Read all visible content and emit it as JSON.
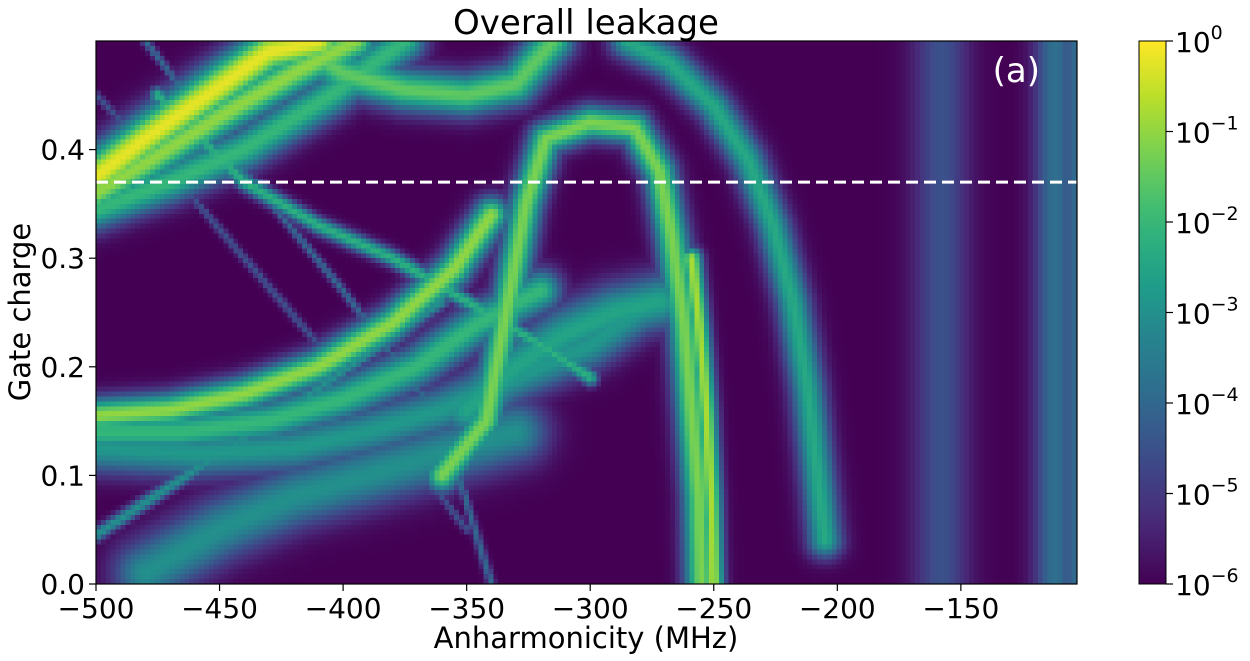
{
  "chart_data": {
    "type": "heatmap",
    "title": "Overall leakage",
    "xlabel": "Anharmonicity (MHz)",
    "ylabel": "Gate charge",
    "xlim": [
      -500,
      -103
    ],
    "ylim": [
      0.0,
      0.5
    ],
    "x_ticks": [
      {
        "value": -500,
        "label": "−500"
      },
      {
        "value": -450,
        "label": "−450"
      },
      {
        "value": -400,
        "label": "−400"
      },
      {
        "value": -350,
        "label": "−350"
      },
      {
        "value": -300,
        "label": "−300"
      },
      {
        "value": -250,
        "label": "−250"
      },
      {
        "value": -200,
        "label": "−200"
      },
      {
        "value": -150,
        "label": "−150"
      }
    ],
    "y_ticks": [
      {
        "value": 0.0,
        "label": "0.0"
      },
      {
        "value": 0.1,
        "label": "0.1"
      },
      {
        "value": 0.2,
        "label": "0.2"
      },
      {
        "value": 0.3,
        "label": "0.3"
      },
      {
        "value": 0.4,
        "label": "0.4"
      }
    ],
    "colormap": "viridis",
    "color_scale": "log",
    "color_range": [
      1e-06,
      1
    ],
    "colorbar_ticks": [
      {
        "exp": 0,
        "base": "10",
        "sup": "0"
      },
      {
        "exp": -1,
        "base": "10",
        "sup": "−1"
      },
      {
        "exp": -2,
        "base": "10",
        "sup": "−2"
      },
      {
        "exp": -3,
        "base": "10",
        "sup": "−3"
      },
      {
        "exp": -4,
        "base": "10",
        "sup": "−4"
      },
      {
        "exp": -5,
        "base": "10",
        "sup": "−5"
      },
      {
        "exp": -6,
        "base": "10",
        "sup": "−6"
      }
    ],
    "reference_line": {
      "orientation": "horizontal",
      "y": 0.37,
      "style": "dashed",
      "color": "#ffffff"
    },
    "annotation": {
      "text": "(a)",
      "position": "top-right",
      "color": "#ffffff"
    },
    "background_value_log10": -6,
    "features": [
      {
        "name": "resonance-main-left",
        "points": [
          [
            -255,
            0
          ],
          [
            -256,
            0.08
          ],
          [
            -259,
            0.16
          ],
          [
            -262,
            0.24
          ],
          [
            -267,
            0.32
          ],
          [
            -272,
            0.38
          ],
          [
            -282,
            0.42
          ],
          [
            -300,
            0.425
          ],
          [
            -318,
            0.41
          ],
          [
            -326,
            0.35
          ],
          [
            -334,
            0.25
          ],
          [
            -342,
            0.15
          ],
          [
            -360,
            0.1
          ]
        ],
        "log10": -1.2,
        "width": 2.4
      },
      {
        "name": "resonance-main-right",
        "points": [
          [
            -205,
            0.04
          ],
          [
            -208,
            0.1
          ],
          [
            -212,
            0.18
          ],
          [
            -218,
            0.26
          ],
          [
            -226,
            0.33
          ],
          [
            -236,
            0.39
          ],
          [
            -250,
            0.44
          ],
          [
            -268,
            0.48
          ],
          [
            -285,
            0.5
          ]
        ],
        "log10": -2.4,
        "width": 2.5
      },
      {
        "name": "resonance-sharp-left",
        "points": [
          [
            -250,
            0
          ],
          [
            -251,
            0.08
          ],
          [
            -253,
            0.16
          ],
          [
            -256,
            0.24
          ],
          [
            -259,
            0.3
          ]
        ],
        "log10": -0.8,
        "width": 1.5
      },
      {
        "name": "arc-top-left",
        "points": [
          [
            -500,
            0.375
          ],
          [
            -480,
            0.41
          ],
          [
            -455,
            0.45
          ],
          [
            -430,
            0.49
          ],
          [
            -410,
            0.5
          ]
        ],
        "log10": -0.2,
        "width": 3.5
      },
      {
        "name": "arc-top-left-2",
        "points": [
          [
            -500,
            0.36
          ],
          [
            -478,
            0.39
          ],
          [
            -450,
            0.43
          ],
          [
            -420,
            0.47
          ],
          [
            -395,
            0.5
          ]
        ],
        "log10": -1.0,
        "width": 3.0
      },
      {
        "name": "arc-top-left-3",
        "points": [
          [
            -500,
            0.345
          ],
          [
            -470,
            0.37
          ],
          [
            -440,
            0.4
          ],
          [
            -405,
            0.45
          ],
          [
            -375,
            0.5
          ]
        ],
        "log10": -2.0,
        "width": 3.0
      },
      {
        "name": "arc-upper-mid",
        "points": [
          [
            -420,
            0.5
          ],
          [
            -400,
            0.47
          ],
          [
            -375,
            0.455
          ],
          [
            -350,
            0.45
          ],
          [
            -330,
            0.46
          ],
          [
            -315,
            0.5
          ]
        ],
        "log10": -1.5,
        "width": 3.0
      },
      {
        "name": "band-lower-left",
        "points": [
          [
            -500,
            0.155
          ],
          [
            -470,
            0.16
          ],
          [
            -440,
            0.175
          ],
          [
            -410,
            0.2
          ],
          [
            -380,
            0.24
          ],
          [
            -355,
            0.29
          ],
          [
            -340,
            0.34
          ]
        ],
        "log10": -1.0,
        "width": 2.5
      },
      {
        "name": "band-lower-left-2",
        "points": [
          [
            -500,
            0.14
          ],
          [
            -465,
            0.14
          ],
          [
            -430,
            0.15
          ],
          [
            -400,
            0.17
          ],
          [
            -370,
            0.2
          ],
          [
            -345,
            0.24
          ],
          [
            -320,
            0.27
          ]
        ],
        "log10": -2.0,
        "width": 3.0
      },
      {
        "name": "band-lower-left-3",
        "points": [
          [
            -500,
            0.125
          ],
          [
            -460,
            0.12
          ],
          [
            -420,
            0.125
          ],
          [
            -390,
            0.14
          ],
          [
            -360,
            0.16
          ],
          [
            -330,
            0.19
          ],
          [
            -300,
            0.22
          ],
          [
            -275,
            0.26
          ]
        ],
        "log10": -2.8,
        "width": 3.5
      },
      {
        "name": "fan-right-of-centre",
        "points": [
          [
            -350,
            0.16
          ],
          [
            -330,
            0.2
          ],
          [
            -310,
            0.23
          ],
          [
            -290,
            0.25
          ],
          [
            -272,
            0.26
          ]
        ],
        "log10": -2.5,
        "width": 4.0
      },
      {
        "name": "diagonal-upper",
        "points": [
          [
            -475,
            0.45
          ],
          [
            -440,
            0.37
          ],
          [
            -410,
            0.33
          ],
          [
            -380,
            0.3
          ],
          [
            -350,
            0.26
          ],
          [
            -320,
            0.22
          ],
          [
            -300,
            0.19
          ]
        ],
        "log10": -2.2,
        "width": 1.2
      },
      {
        "name": "diagonal-lower",
        "points": [
          [
            -500,
            0.045
          ],
          [
            -470,
            0.09
          ],
          [
            -440,
            0.135
          ],
          [
            -410,
            0.18
          ],
          [
            -385,
            0.22
          ],
          [
            -360,
            0.26
          ]
        ],
        "log10": -3.0,
        "width": 1.0
      },
      {
        "name": "diagonal-thin-a",
        "points": [
          [
            -480,
            0.5
          ],
          [
            -440,
            0.38
          ],
          [
            -400,
            0.27
          ],
          [
            -360,
            0.15
          ],
          [
            -340,
            0.0
          ]
        ],
        "log10": -4.0,
        "width": 0.6
      },
      {
        "name": "diagonal-thin-b",
        "points": [
          [
            -500,
            0.45
          ],
          [
            -470,
            0.38
          ],
          [
            -440,
            0.3
          ],
          [
            -410,
            0.22
          ],
          [
            -380,
            0.14
          ],
          [
            -350,
            0.05
          ]
        ],
        "log10": -4.5,
        "width": 0.6
      },
      {
        "name": "lower-fringes",
        "points": [
          [
            -480,
            0.01
          ],
          [
            -450,
            0.05
          ],
          [
            -420,
            0.08
          ],
          [
            -390,
            0.1
          ],
          [
            -360,
            0.12
          ],
          [
            -330,
            0.14
          ]
        ],
        "log10": -3.0,
        "width": 4.5
      },
      {
        "name": "vertical-stripes-a",
        "points": [
          [
            -158,
            0
          ],
          [
            -158,
            0.5
          ]
        ],
        "log10": -4.5,
        "width": 4.0
      },
      {
        "name": "vertical-stripes-b",
        "points": [
          [
            -112,
            0
          ],
          [
            -112,
            0.5
          ]
        ],
        "log10": -3.8,
        "width": 3.0
      },
      {
        "name": "vertical-stripes-c",
        "points": [
          [
            -104,
            0
          ],
          [
            -104,
            0.5
          ]
        ],
        "log10": -4.0,
        "width": 2.0
      }
    ]
  }
}
